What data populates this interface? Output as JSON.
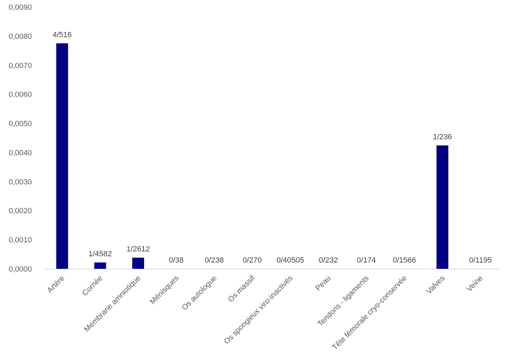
{
  "chart_data": {
    "type": "bar",
    "title": "",
    "xlabel": "",
    "ylabel": "",
    "ylim": [
      0,
      0.009
    ],
    "yticks": [
      "0,0000",
      "0,0010",
      "0,0020",
      "0,0030",
      "0,0040",
      "0,0050",
      "0,0060",
      "0,0070",
      "0,0080",
      "0,0090"
    ],
    "grid": false,
    "bar_color": "#000080",
    "categories": [
      "Artère",
      "Cornée",
      "Membrane amniotique",
      "Ménisques",
      "Os autologue",
      "Os massif",
      "Os spongieux viro-inactivés",
      "Peau",
      "Tendons - ligaments",
      "Tête fémorale cryo-conservée",
      "Valves",
      "Veine"
    ],
    "values": [
      0.00775,
      0.000218,
      0.000383,
      0,
      0,
      0,
      0,
      0,
      0,
      0,
      0.00424,
      0
    ],
    "data_labels": [
      "4/516",
      "1/4582",
      "1/2612",
      "0/38",
      "0/238",
      "0/270",
      "0/40505",
      "0/232",
      "0/174",
      "0/1566",
      "1/236",
      "0/1195"
    ]
  }
}
